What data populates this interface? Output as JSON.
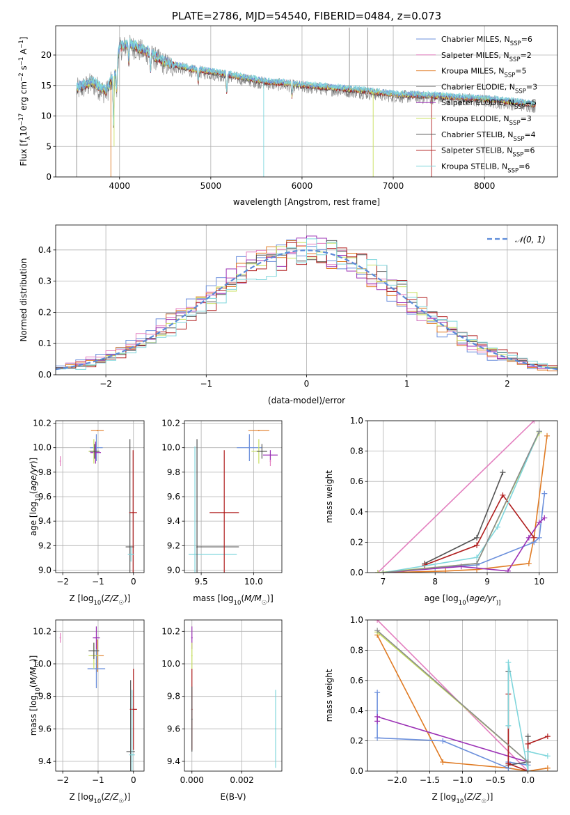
{
  "colors": {
    "chabrier_miles": "#6b8fdc",
    "salpeter_miles": "#e37fbf",
    "kroupa_miles": "#e07b24",
    "chabrier_elodie": "#8a8a8a",
    "salpeter_elodie": "#9b30b5",
    "kroupa_elodie": "#c8e060",
    "chabrier_stelib": "#555555",
    "salpeter_stelib": "#b01e1e",
    "kroupa_stelib": "#7fd6dc"
  },
  "chart_data": [
    {
      "id": "spectrum",
      "type": "line",
      "title": "PLATE=2786, MJD=54540, FIBERID=0484, z=0.073",
      "xlabel": "wavelength [Angstrom, rest frame]",
      "ylabel": "Flux [f_λ10^-17 erg cm^-2 s^-1 A^-1]",
      "ylabel_parts": {
        "a": "Flux [f",
        "b": "λ",
        "c": "10",
        "d": "−17",
        "e": " erg cm",
        "f": "−2",
        "g": " s",
        "h": "−1",
        "i": " A",
        "j": "−1",
        "k": "]"
      },
      "xlim": [
        3300,
        8800
      ],
      "ylim": [
        0,
        24.8
      ],
      "xticks": [
        "4000",
        "5000",
        "6000",
        "7000",
        "8000"
      ],
      "xtick_values": [
        4000,
        5000,
        6000,
        7000,
        8000
      ],
      "yticks": [
        "0",
        "5",
        "10",
        "15",
        "20"
      ],
      "ytick_values": [
        0,
        5,
        10,
        15,
        20
      ],
      "continuum": [
        [
          3530,
          14.5
        ],
        [
          3700,
          15.5
        ],
        [
          3850,
          14.0
        ],
        [
          3950,
          16.8
        ],
        [
          4000,
          21.2
        ],
        [
          4100,
          21.8
        ],
        [
          4300,
          20.5
        ],
        [
          4500,
          18.7
        ],
        [
          4800,
          17.6
        ],
        [
          5000,
          17.2
        ],
        [
          5300,
          16.4
        ],
        [
          5600,
          15.6
        ],
        [
          6000,
          15.0
        ],
        [
          6300,
          14.6
        ],
        [
          6600,
          14.2
        ],
        [
          7000,
          13.5
        ],
        [
          7500,
          13.2
        ],
        [
          8000,
          12.7
        ],
        [
          8400,
          12.1
        ],
        [
          8560,
          11.8
        ]
      ],
      "legend": [
        {
          "main": "Chabrier MILES, N",
          "sub": "SSP",
          "tail": "=6",
          "color": "#6b8fdc"
        },
        {
          "main": "Salpeter MILES, N",
          "sub": "SSP",
          "tail": "=2",
          "color": "#e37fbf"
        },
        {
          "main": "Kroupa MILES, N",
          "sub": "SSP",
          "tail": "=5",
          "color": "#e07b24"
        },
        {
          "main": "Chabrier ELODIE, N",
          "sub": "SSP",
          "tail": "=3",
          "color": "#8a8a8a"
        },
        {
          "main": "Salpeter ELODIE, N",
          "sub": "SSP",
          "tail": "=5",
          "color": "#9b30b5"
        },
        {
          "main": "Kroupa ELODIE, N",
          "sub": "SSP",
          "tail": "=3",
          "color": "#c8e060"
        },
        {
          "main": "Chabrier STELIB, N",
          "sub": "SSP",
          "tail": "=4",
          "color": "#555555"
        },
        {
          "main": "Salpeter STELIB, N",
          "sub": "SSP",
          "tail": "=6",
          "color": "#b01e1e"
        },
        {
          "main": "Kroupa STELIB, N",
          "sub": "SSP",
          "tail": "=6",
          "color": "#7fd6dc"
        }
      ]
    },
    {
      "id": "residuals",
      "type": "line",
      "xlabel": "(data-model)/error",
      "ylabel": "Normed distribution",
      "xlim": [
        -2.5,
        2.5
      ],
      "ylim": [
        0,
        0.48
      ],
      "xticks": [
        "−2",
        "−1",
        "0",
        "1",
        "2"
      ],
      "xtick_values": [
        -2,
        -1,
        0,
        1,
        2
      ],
      "yticks": [
        "0.0",
        "0.1",
        "0.2",
        "0.3",
        "0.4"
      ],
      "ytick_values": [
        0,
        0.1,
        0.2,
        0.3,
        0.4
      ],
      "legend_label": "𝒩(0, 1)",
      "gaussian_color": "#5b8ad8"
    },
    {
      "id": "age_vs_z",
      "type": "scatter",
      "xlabel": "Z [log10(Z/Z☉)]",
      "xlabel_parts": {
        "a": "Z [log",
        "b": "10",
        "c": "(",
        "d": "Z/Z",
        "e": "☉",
        "f": ")]"
      },
      "ylabel": "age [log10(age/yr)]",
      "ylabel_parts": {
        "a": "age  [log",
        "b": "10",
        "c": "(",
        "d": "age/yr",
        "e": ")]"
      },
      "xlim": [
        -2.2,
        0.3
      ],
      "ylim": [
        8.98,
        10.22
      ],
      "xticks": [
        "−2",
        "−1",
        "0"
      ],
      "xtick_values": [
        -2,
        -1,
        0
      ],
      "yticks": [
        "9.0",
        "9.2",
        "9.4",
        "9.6",
        "9.8",
        "10.0",
        "10.2"
      ],
      "ytick_values": [
        9.0,
        9.2,
        9.4,
        9.6,
        9.8,
        10.0,
        10.2
      ],
      "points": [
        {
          "x": -2.07,
          "y": 9.89,
          "xerr": 0.0,
          "yerr": 0.04,
          "color": "#e37fbf"
        },
        {
          "x": -1.02,
          "y": 10.14,
          "xerr": 0.18,
          "yerr": 0.0,
          "color": "#e07b24"
        },
        {
          "x": -1.05,
          "y": 10.0,
          "xerr": 0.18,
          "yerr": 0.11,
          "color": "#6b8fdc"
        },
        {
          "x": -1.07,
          "y": 9.96,
          "xerr": 0.15,
          "yerr": 0.09,
          "color": "#9b30b5"
        },
        {
          "x": -1.12,
          "y": 9.97,
          "xerr": 0.15,
          "yerr": 0.1,
          "color": "#c8e060"
        },
        {
          "x": -1.1,
          "y": 9.97,
          "xerr": 0.14,
          "yerr": 0.06,
          "color": "#555555"
        },
        {
          "x": -0.1,
          "y": 9.19,
          "xerr": 0.12,
          "yerr": 0.88,
          "color": "#555555"
        },
        {
          "x": -0.01,
          "y": 9.47,
          "xerr": 0.11,
          "yerr": 0.51,
          "color": "#b01e1e"
        },
        {
          "x": -0.07,
          "y": 9.13,
          "xerr": 0.09,
          "yerr": 0.06,
          "color": "#7fd6dc"
        }
      ]
    },
    {
      "id": "age_vs_mass",
      "type": "scatter",
      "xlabel": "mass [log10(M/M☉)]",
      "xlabel_parts": {
        "a": "mass [log",
        "b": "10",
        "c": "(",
        "d": "M/M",
        "e": "☉",
        "f": ")]"
      },
      "xlim": [
        9.34,
        10.27
      ],
      "ylim": [
        8.98,
        10.22
      ],
      "xticks": [
        "9.5",
        "10.0"
      ],
      "xtick_values": [
        9.5,
        10.0
      ],
      "yticks": [
        "9.0",
        "9.2",
        "9.4",
        "9.6",
        "9.8",
        "10.0",
        "10.2"
      ],
      "ytick_values": [
        9.0,
        9.2,
        9.4,
        9.6,
        9.8,
        10.0,
        10.2
      ],
      "points": [
        {
          "x": 10.16,
          "y": 9.89,
          "xerr": 0.0,
          "yerr": 0.04,
          "color": "#e37fbf"
        },
        {
          "x": 10.05,
          "y": 10.14,
          "xerr": 0.1,
          "yerr": 0.0,
          "color": "#e07b24"
        },
        {
          "x": 9.96,
          "y": 10.0,
          "xerr": 0.12,
          "yerr": 0.11,
          "color": "#6b8fdc"
        },
        {
          "x": 10.16,
          "y": 9.94,
          "xerr": 0.07,
          "yerr": 0.04,
          "color": "#9b30b5"
        },
        {
          "x": 10.05,
          "y": 9.97,
          "xerr": 0.07,
          "yerr": 0.1,
          "color": "#c8e060"
        },
        {
          "x": 10.08,
          "y": 9.97,
          "xerr": 0.05,
          "yerr": 0.06,
          "color": "#555555"
        },
        {
          "x": 9.46,
          "y": 9.19,
          "xerr": 0.0,
          "yerr": 0.88,
          "color": "#555555"
        },
        {
          "x": 9.72,
          "y": 9.47,
          "xerr": 0.14,
          "yerr": 0.51,
          "color": "#b01e1e"
        },
        {
          "x": 9.44,
          "y": 9.13,
          "xerr": 0.0,
          "yerr": 0.88,
          "color": "#7fd6dc"
        }
      ],
      "hbars": [
        {
          "x1": 9.46,
          "x2": 9.86,
          "y": 9.19,
          "color": "#555555"
        },
        {
          "x1": 9.38,
          "x2": 9.84,
          "y": 9.13,
          "color": "#7fd6dc"
        }
      ]
    },
    {
      "id": "weight_vs_age",
      "type": "line",
      "xlabel": "age [log10(age/yr)]",
      "xlabel_parts": {
        "a": "age  [log",
        "b": "10",
        "c": "(",
        "d": "age/yr",
        "e": ")]"
      },
      "ylabel": "mass weight",
      "xlim": [
        6.7,
        10.35
      ],
      "ylim": [
        0,
        1.0
      ],
      "xticks": [
        "7",
        "8",
        "9",
        "10"
      ],
      "xtick_values": [
        7,
        8,
        9,
        10
      ],
      "yticks": [
        "0.0",
        "0.2",
        "0.4",
        "0.6",
        "0.8",
        "1.0"
      ],
      "ytick_values": [
        0,
        0.2,
        0.4,
        0.6,
        0.8,
        1.0
      ],
      "series": [
        {
          "color": "#e37fbf",
          "x": [
            6.9,
            9.9
          ],
          "y": [
            0.0,
            1.0
          ]
        },
        {
          "color": "#e07b24",
          "x": [
            7.0,
            8.2,
            8.8,
            9.8,
            9.9,
            10.15
          ],
          "y": [
            0.0,
            0.01,
            0.02,
            0.06,
            0.23,
            0.9
          ]
        },
        {
          "color": "#6b8fdc",
          "x": [
            6.9,
            8.0,
            8.8,
            9.9,
            10.0,
            10.1
          ],
          "y": [
            0.0,
            0.03,
            0.05,
            0.2,
            0.23,
            0.52
          ]
        },
        {
          "color": "#9b30b5",
          "x": [
            7.0,
            8.5,
            9.4,
            9.8,
            10.0,
            10.1
          ],
          "y": [
            0.0,
            0.04,
            0.01,
            0.23,
            0.33,
            0.36
          ]
        },
        {
          "color": "#c8e060",
          "x": [
            6.9,
            8.8,
            10.0
          ],
          "y": [
            0.0,
            0.06,
            0.92
          ]
        },
        {
          "color": "#555555",
          "x": [
            7.8,
            8.8,
            9.3
          ],
          "y": [
            0.06,
            0.23,
            0.66
          ]
        },
        {
          "color": "#b01e1e",
          "x": [
            7.8,
            8.8,
            9.3,
            9.9
          ],
          "y": [
            0.05,
            0.18,
            0.51,
            0.23
          ]
        },
        {
          "color": "#7fd6dc",
          "x": [
            7.0,
            8.8,
            9.2,
            10.0
          ],
          "y": [
            0.0,
            0.1,
            0.3,
            0.93
          ]
        },
        {
          "color": "#8a8a8a",
          "x": [
            7.0,
            8.8,
            10.0
          ],
          "y": [
            0.0,
            0.06,
            0.93
          ]
        }
      ]
    },
    {
      "id": "mass_vs_z",
      "type": "scatter",
      "xlabel": "Z [log10(Z/Z☉)]",
      "xlabel_parts": {
        "a": "Z [log",
        "b": "10",
        "c": "(",
        "d": "Z/Z",
        "e": "☉",
        "f": ")]"
      },
      "ylabel": "mass [log10(M/M☉)]",
      "ylabel_parts": {
        "a": "mass [log",
        "b": "10",
        "c": "(",
        "d": "M/M",
        "e": "☉",
        "f": ")]"
      },
      "xlim": [
        -2.2,
        0.3
      ],
      "ylim": [
        9.34,
        10.27
      ],
      "xticks": [
        "−2",
        "−1",
        "0"
      ],
      "xtick_values": [
        -2,
        -1,
        0
      ],
      "yticks": [
        "9.4",
        "9.6",
        "9.8",
        "10.0",
        "10.2"
      ],
      "ytick_values": [
        9.4,
        9.6,
        9.8,
        10.0,
        10.2
      ],
      "points": [
        {
          "x": -2.07,
          "y": 10.16,
          "xerr": 0.0,
          "yerr": 0.03,
          "color": "#e37fbf"
        },
        {
          "x": -1.02,
          "y": 10.05,
          "xerr": 0.18,
          "yerr": 0.1,
          "color": "#e07b24"
        },
        {
          "x": -1.05,
          "y": 9.97,
          "xerr": 0.25,
          "yerr": 0.12,
          "color": "#6b8fdc"
        },
        {
          "x": -1.05,
          "y": 10.16,
          "xerr": 0.1,
          "yerr": 0.07,
          "color": "#9b30b5"
        },
        {
          "x": -1.12,
          "y": 10.05,
          "xerr": 0.15,
          "yerr": 0.08,
          "color": "#c8e060"
        },
        {
          "x": -1.12,
          "y": 10.08,
          "xerr": 0.15,
          "yerr": 0.05,
          "color": "#555555"
        },
        {
          "x": -0.08,
          "y": 9.46,
          "xerr": 0.12,
          "yerr": 0.44,
          "color": "#555555"
        },
        {
          "x": 0.0,
          "y": 9.72,
          "xerr": 0.1,
          "yerr": 0.25,
          "color": "#b01e1e"
        },
        {
          "x": -0.04,
          "y": 9.44,
          "xerr": 0.08,
          "yerr": 0.4,
          "color": "#7fd6dc"
        }
      ]
    },
    {
      "id": "mass_vs_ebv",
      "type": "scatter",
      "xlabel": "E(B-V)",
      "xlim": [
        -0.0003,
        0.0036
      ],
      "ylim": [
        9.34,
        10.27
      ],
      "xticks": [
        "0.000",
        "0.002"
      ],
      "xtick_values": [
        0.0,
        0.002
      ],
      "yticks": [
        "9.4",
        "9.6",
        "9.8",
        "10.0",
        "10.2"
      ],
      "ytick_values": [
        9.4,
        9.6,
        9.8,
        10.0,
        10.2
      ],
      "points": [
        {
          "x": 0.0,
          "y": 10.16,
          "xerr": 0.0,
          "yerr": 0.07,
          "color": "#9b30b5"
        },
        {
          "x": 0.0,
          "y": 10.05,
          "xerr": 0.0,
          "yerr": 0.08,
          "color": "#c8e060"
        },
        {
          "x": 0.0,
          "y": 9.72,
          "xerr": 0.0,
          "yerr": 0.25,
          "color": "#b01e1e"
        },
        {
          "x": 0.0,
          "y": 9.66,
          "xerr": 0.0,
          "yerr": 0.2,
          "color": "#555555"
        },
        {
          "x": 0.00335,
          "y": 9.6,
          "xerr": 0.0,
          "yerr": 0.24,
          "color": "#7fd6dc"
        }
      ]
    },
    {
      "id": "weight_vs_z",
      "type": "line",
      "xlabel": "Z [log10(Z/Z☉)]",
      "xlabel_parts": {
        "a": "Z [log",
        "b": "10",
        "c": "(",
        "d": "Z/Z",
        "e": "☉",
        "f": ")]"
      },
      "ylabel": "mass weight",
      "xlim": [
        -2.45,
        0.45
      ],
      "ylim": [
        0,
        1.0
      ],
      "xticks": [
        "−2.0",
        "−1.5",
        "−1.0",
        "−0.5",
        "0.0"
      ],
      "xtick_values": [
        -2.0,
        -1.5,
        -1.0,
        -0.5,
        0.0
      ],
      "yticks": [
        "0.0",
        "0.2",
        "0.4",
        "0.6",
        "0.8",
        "1.0"
      ],
      "ytick_values": [
        0,
        0.2,
        0.4,
        0.6,
        0.8,
        1.0
      ],
      "series": [
        {
          "color": "#e37fbf",
          "x": [
            -2.3,
            0.0
          ],
          "y": [
            1.0,
            0.0
          ]
        },
        {
          "color": "#e07b24",
          "x": [
            -2.3,
            -1.3,
            -0.3,
            0.0,
            0.3
          ],
          "y": [
            0.9,
            0.06,
            0.02,
            0.0,
            0.02
          ]
        },
        {
          "color": "#6b8fdc",
          "x": [
            -2.3,
            -2.3,
            -1.3,
            -0.3,
            -0.3,
            0.0
          ],
          "y": [
            0.52,
            0.22,
            0.2,
            0.02,
            0.06,
            0.04
          ]
        },
        {
          "color": "#9b30b5",
          "x": [
            -2.3,
            -2.3,
            0.0,
            0.0
          ],
          "y": [
            0.33,
            0.36,
            0.06,
            0.0
          ]
        },
        {
          "color": "#c8e060",
          "x": [
            -2.3,
            0.0,
            0.0
          ],
          "y": [
            0.92,
            0.06,
            0.0
          ]
        },
        {
          "color": "#555555",
          "x": [
            -0.3,
            -0.3,
            0.0,
            0.0
          ],
          "y": [
            0.66,
            0.04,
            0.06,
            0.23
          ]
        },
        {
          "color": "#b01e1e",
          "x": [
            -0.3,
            -0.3,
            0.0,
            0.0,
            0.3
          ],
          "y": [
            0.51,
            0.05,
            0.0,
            0.18,
            0.23
          ]
        },
        {
          "color": "#7fd6dc",
          "x": [
            -0.3,
            -0.3,
            0.0,
            0.0,
            0.3
          ],
          "y": [
            0.3,
            0.72,
            0.0,
            0.13,
            0.1
          ]
        },
        {
          "color": "#8a8a8a",
          "x": [
            -2.3,
            0.0
          ],
          "y": [
            0.93,
            0.06
          ]
        }
      ]
    }
  ]
}
